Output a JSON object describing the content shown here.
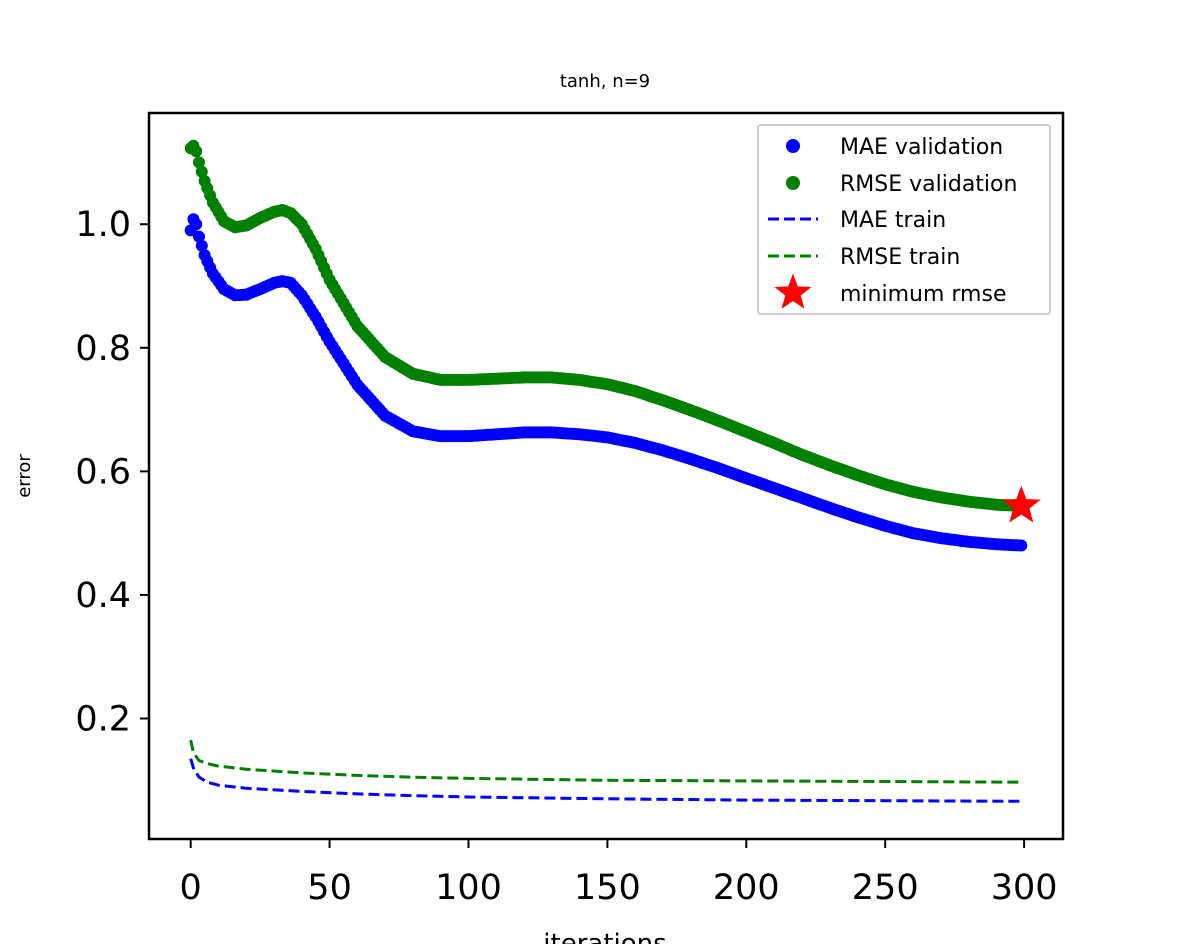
{
  "chart_data": {
    "type": "scatter",
    "title": "tanh, n=9",
    "xlabel": "iterations",
    "ylabel": "error",
    "xlim": [
      -15,
      314
    ],
    "ylim": [
      0.005,
      1.18
    ],
    "xticks": [
      0,
      50,
      100,
      150,
      200,
      250,
      300
    ],
    "yticks": [
      0.2,
      0.4,
      0.6,
      0.8,
      1.0
    ],
    "xtick_labels": [
      "0",
      "50",
      "100",
      "150",
      "200",
      "250",
      "300"
    ],
    "ytick_labels": [
      "0.2",
      "0.4",
      "0.6",
      "0.8",
      "1.0"
    ],
    "grid": false,
    "legend_position": "top-right",
    "series": [
      {
        "name": "MAE validation",
        "kind": "points",
        "color": "#0000ff",
        "x_start": 0,
        "x_end": 299,
        "x_step": 1,
        "keypoints": [
          [
            0,
            0.99
          ],
          [
            1,
            1.008
          ],
          [
            2,
            1.0
          ],
          [
            3,
            0.98
          ],
          [
            5,
            0.95
          ],
          [
            8,
            0.92
          ],
          [
            12,
            0.895
          ],
          [
            16,
            0.885
          ],
          [
            20,
            0.886
          ],
          [
            25,
            0.895
          ],
          [
            30,
            0.905
          ],
          [
            33,
            0.908
          ],
          [
            36,
            0.905
          ],
          [
            40,
            0.885
          ],
          [
            45,
            0.85
          ],
          [
            50,
            0.81
          ],
          [
            60,
            0.74
          ],
          [
            70,
            0.69
          ],
          [
            80,
            0.665
          ],
          [
            90,
            0.657
          ],
          [
            100,
            0.657
          ],
          [
            110,
            0.66
          ],
          [
            120,
            0.663
          ],
          [
            130,
            0.663
          ],
          [
            140,
            0.66
          ],
          [
            150,
            0.655
          ],
          [
            160,
            0.646
          ],
          [
            170,
            0.634
          ],
          [
            180,
            0.62
          ],
          [
            190,
            0.605
          ],
          [
            200,
            0.589
          ],
          [
            210,
            0.573
          ],
          [
            220,
            0.557
          ],
          [
            230,
            0.541
          ],
          [
            240,
            0.526
          ],
          [
            250,
            0.512
          ],
          [
            260,
            0.5
          ],
          [
            270,
            0.492
          ],
          [
            280,
            0.486
          ],
          [
            290,
            0.482
          ],
          [
            299,
            0.48
          ]
        ]
      },
      {
        "name": "RMSE validation",
        "kind": "points",
        "color": "#008000",
        "x_start": 0,
        "x_end": 299,
        "x_step": 1,
        "keypoints": [
          [
            0,
            1.123
          ],
          [
            1,
            1.127
          ],
          [
            2,
            1.118
          ],
          [
            3,
            1.1
          ],
          [
            5,
            1.07
          ],
          [
            8,
            1.035
          ],
          [
            12,
            1.005
          ],
          [
            16,
            0.995
          ],
          [
            20,
            0.998
          ],
          [
            25,
            1.01
          ],
          [
            30,
            1.02
          ],
          [
            33,
            1.023
          ],
          [
            36,
            1.018
          ],
          [
            40,
            1.0
          ],
          [
            45,
            0.96
          ],
          [
            50,
            0.91
          ],
          [
            60,
            0.835
          ],
          [
            70,
            0.785
          ],
          [
            80,
            0.758
          ],
          [
            90,
            0.748
          ],
          [
            100,
            0.748
          ],
          [
            110,
            0.75
          ],
          [
            120,
            0.752
          ],
          [
            130,
            0.752
          ],
          [
            140,
            0.748
          ],
          [
            150,
            0.741
          ],
          [
            160,
            0.73
          ],
          [
            170,
            0.715
          ],
          [
            180,
            0.699
          ],
          [
            190,
            0.682
          ],
          [
            200,
            0.664
          ],
          [
            210,
            0.646
          ],
          [
            220,
            0.627
          ],
          [
            230,
            0.61
          ],
          [
            240,
            0.594
          ],
          [
            250,
            0.579
          ],
          [
            260,
            0.567
          ],
          [
            270,
            0.558
          ],
          [
            280,
            0.551
          ],
          [
            290,
            0.546
          ],
          [
            299,
            0.544
          ]
        ]
      },
      {
        "name": "MAE train",
        "kind": "dashed-line",
        "color": "#0000ff",
        "keypoints": [
          [
            0,
            0.135
          ],
          [
            1,
            0.12
          ],
          [
            3,
            0.105
          ],
          [
            6,
            0.097
          ],
          [
            10,
            0.092
          ],
          [
            20,
            0.087
          ],
          [
            40,
            0.082
          ],
          [
            60,
            0.078
          ],
          [
            80,
            0.075
          ],
          [
            100,
            0.073
          ],
          [
            150,
            0.07
          ],
          [
            200,
            0.068
          ],
          [
            250,
            0.067
          ],
          [
            299,
            0.066
          ]
        ]
      },
      {
        "name": "RMSE train",
        "kind": "dashed-line",
        "color": "#008000",
        "keypoints": [
          [
            0,
            0.165
          ],
          [
            1,
            0.145
          ],
          [
            3,
            0.132
          ],
          [
            6,
            0.127
          ],
          [
            10,
            0.123
          ],
          [
            20,
            0.118
          ],
          [
            40,
            0.112
          ],
          [
            60,
            0.108
          ],
          [
            80,
            0.105
          ],
          [
            100,
            0.103
          ],
          [
            150,
            0.1
          ],
          [
            200,
            0.099
          ],
          [
            250,
            0.098
          ],
          [
            299,
            0.097
          ]
        ]
      },
      {
        "name": "minimum rmse",
        "kind": "star",
        "color": "#ff0000",
        "points": [
          [
            299,
            0.544
          ]
        ]
      }
    ]
  }
}
